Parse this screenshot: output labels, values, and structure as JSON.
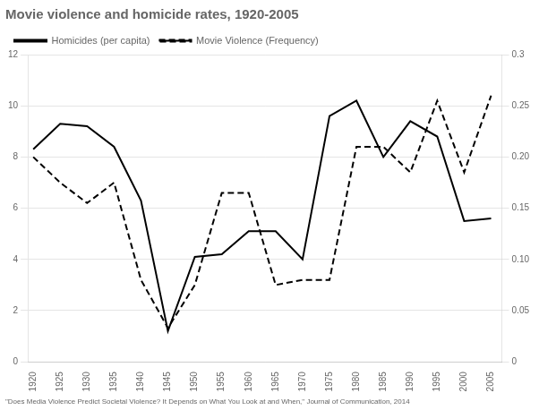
{
  "chart_data": {
    "type": "line",
    "title": "Movie violence and homicide rates, 1920-2005",
    "footnote": "\"Does Media Violence Predict Societal Violence? It Depends on What You Look at and When,\" Journal of Communication, 2014",
    "x": [
      1920,
      1925,
      1930,
      1935,
      1940,
      1945,
      1950,
      1955,
      1960,
      1965,
      1970,
      1975,
      1980,
      1985,
      1990,
      1995,
      2000,
      2005
    ],
    "series": [
      {
        "name": "Homicides (per capita)",
        "color": "#000000",
        "line_style": "solid",
        "values": [
          8.3,
          9.3,
          9.2,
          8.4,
          6.3,
          1.2,
          4.1,
          4.2,
          5.1,
          5.1,
          4.0,
          9.6,
          10.2,
          8.0,
          9.4,
          8.8,
          5.5,
          5.6
        ]
      },
      {
        "name": "Movie Violence (Frequency)",
        "color": "#000000",
        "line_style": "dashed",
        "axis": "y2",
        "values": [
          0.2,
          0.175,
          0.155,
          0.175,
          0.08,
          0.033,
          0.075,
          0.165,
          0.165,
          0.075,
          0.08,
          0.08,
          0.21,
          0.21,
          0.185,
          0.255,
          0.185,
          0.26
        ]
      }
    ],
    "xlim": [
      1919,
      2007
    ],
    "xticks": [
      1920,
      1925,
      1930,
      1935,
      1940,
      1945,
      1950,
      1955,
      1960,
      1965,
      1970,
      1975,
      1980,
      1985,
      1990,
      1995,
      2000,
      2005
    ],
    "ylim": [
      0,
      12
    ],
    "yticks": [
      0,
      2,
      4,
      6,
      8,
      10,
      12
    ],
    "y2lim": [
      0,
      0.3
    ],
    "y2ticks": [
      0,
      0.05,
      {
        "value": 0.1,
        "label": "0.10"
      },
      0.15,
      {
        "value": 0.2,
        "label": "0.20"
      },
      0.25,
      0.3
    ],
    "grid": true,
    "legend": "upper left"
  }
}
